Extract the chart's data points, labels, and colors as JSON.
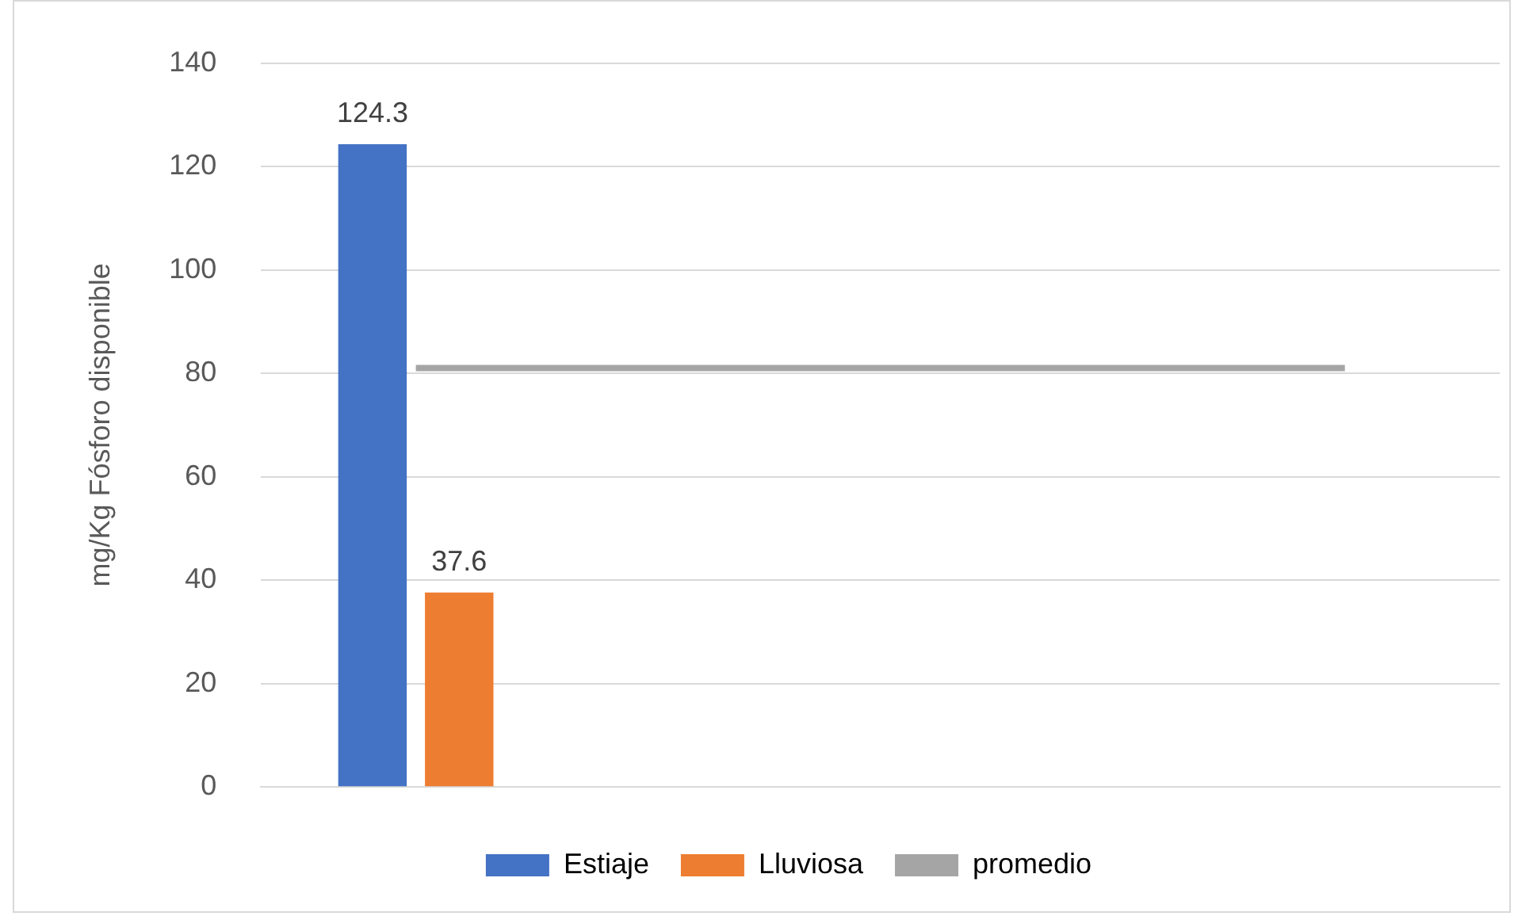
{
  "chart_data": {
    "type": "bar",
    "ylabel": "mg/Kg Fósforo disponible",
    "categories": [
      null,
      null,
      null,
      null
    ],
    "series": [
      {
        "name": "Estiaje",
        "color": "#4472c4",
        "values": [
          124.3,
          null,
          null,
          null
        ],
        "value_labels": [
          "124.3",
          null,
          null,
          null
        ]
      },
      {
        "name": "Lluviosa",
        "color": "#ed7d31",
        "values": [
          37.6,
          null,
          null,
          null
        ],
        "value_labels": [
          "37.6",
          null,
          null,
          null
        ]
      },
      {
        "name": "promedio",
        "type": "line",
        "color": "#a5a5a5",
        "values": [
          81,
          81,
          81,
          81
        ],
        "marker": "none"
      }
    ],
    "ylim": [
      0,
      140
    ],
    "yticks": [
      0,
      20,
      40,
      60,
      80,
      100,
      120,
      140
    ],
    "grid": "y",
    "legend": "bottom"
  }
}
